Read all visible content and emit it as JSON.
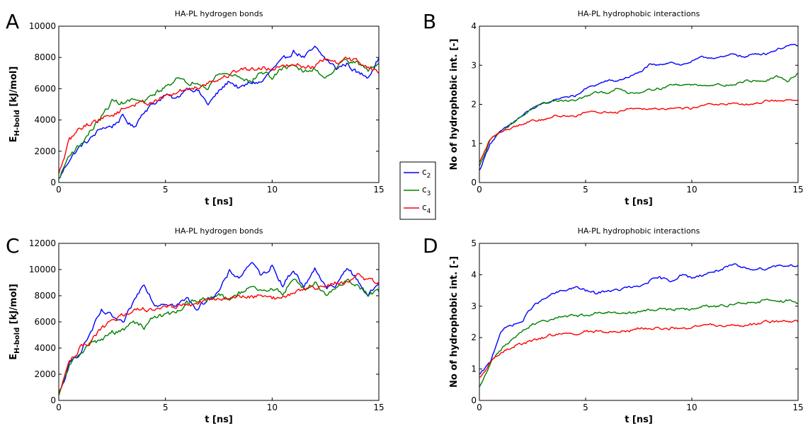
{
  "legend": {
    "entries": [
      {
        "base": "c",
        "sub": "2",
        "color": "#0000ff"
      },
      {
        "base": "c",
        "sub": "3",
        "color": "#008000"
      },
      {
        "base": "c",
        "sub": "4",
        "color": "#ff0000"
      }
    ]
  },
  "chart_data": [
    {
      "panel": "A",
      "type": "line",
      "title": "HA-PL hydrogen bonds",
      "xlabel": "t [ns]",
      "ylabel_main": "E",
      "ylabel_sub": "H-bold",
      "ylabel_rest": " [kJ/mol]",
      "xlim": [
        0,
        15
      ],
      "ylim": [
        0,
        10000
      ],
      "xticks": [
        0,
        5,
        10,
        15
      ],
      "yticks": [
        0,
        2000,
        4000,
        6000,
        8000,
        10000
      ],
      "noise": 0.025,
      "x": [
        0,
        0.5,
        1,
        1.5,
        2,
        2.5,
        3,
        3.5,
        4,
        4.5,
        5,
        5.5,
        6,
        6.5,
        7,
        7.5,
        8,
        8.5,
        9,
        9.5,
        10,
        10.5,
        11,
        11.5,
        12,
        12.5,
        13,
        13.5,
        14,
        14.5,
        15
      ],
      "series": [
        {
          "name": "c2",
          "color": "#0000ff",
          "values": [
            200,
            1500,
            2300,
            2800,
            3500,
            3600,
            4200,
            3500,
            4600,
            5100,
            5600,
            5300,
            6100,
            5900,
            5000,
            5800,
            6500,
            6000,
            6400,
            6400,
            7200,
            7800,
            8400,
            8000,
            8600,
            7900,
            7300,
            7600,
            7000,
            6800,
            8000
          ]
        },
        {
          "name": "c3",
          "color": "#008000",
          "values": [
            200,
            1800,
            2400,
            3300,
            4200,
            5200,
            5100,
            5300,
            5100,
            5700,
            6100,
            6700,
            6300,
            6500,
            6100,
            7000,
            6900,
            6800,
            6400,
            7100,
            6700,
            7300,
            7600,
            7000,
            7300,
            6700,
            7400,
            7900,
            7600,
            7200,
            7600
          ]
        },
        {
          "name": "c4",
          "color": "#ff0000",
          "values": [
            500,
            2700,
            3500,
            3800,
            4100,
            4300,
            4700,
            5000,
            5100,
            5200,
            5500,
            5700,
            6000,
            6100,
            6400,
            6600,
            6900,
            7300,
            7200,
            7400,
            7200,
            7600,
            7600,
            7400,
            7400,
            7900,
            7600,
            7900,
            7800,
            7400,
            7000
          ]
        }
      ]
    },
    {
      "panel": "B",
      "type": "line",
      "title": "HA-PL hydrophobic interactions",
      "xlabel": "t [ns]",
      "ylabel_main": "No of hydrophobic int. [-]",
      "ylabel_sub": "",
      "ylabel_rest": "",
      "xlim": [
        0,
        15
      ],
      "ylim": [
        0,
        4
      ],
      "xticks": [
        0,
        5,
        10,
        15
      ],
      "yticks": [
        0,
        1,
        2,
        3,
        4
      ],
      "noise": 0.012,
      "x": [
        0,
        0.5,
        1,
        1.5,
        2,
        2.5,
        3,
        3.5,
        4,
        4.5,
        5,
        5.5,
        6,
        6.5,
        7,
        7.5,
        8,
        8.5,
        9,
        9.5,
        10,
        10.5,
        11,
        11.5,
        12,
        12.5,
        13,
        13.5,
        14,
        14.5,
        15
      ],
      "series": [
        {
          "name": "c2",
          "color": "#0000ff",
          "values": [
            0.3,
            1.0,
            1.3,
            1.5,
            1.7,
            1.9,
            2.0,
            2.1,
            2.2,
            2.2,
            2.4,
            2.5,
            2.6,
            2.6,
            2.7,
            2.8,
            3.0,
            3.0,
            3.1,
            3.0,
            3.1,
            3.2,
            3.2,
            3.2,
            3.3,
            3.2,
            3.3,
            3.3,
            3.4,
            3.5,
            3.5
          ]
        },
        {
          "name": "c3",
          "color": "#008000",
          "values": [
            0.4,
            1.1,
            1.3,
            1.5,
            1.7,
            1.9,
            2.0,
            2.1,
            2.1,
            2.1,
            2.2,
            2.3,
            2.3,
            2.4,
            2.3,
            2.3,
            2.4,
            2.4,
            2.5,
            2.5,
            2.5,
            2.5,
            2.5,
            2.5,
            2.5,
            2.6,
            2.6,
            2.6,
            2.7,
            2.6,
            2.8
          ]
        },
        {
          "name": "c4",
          "color": "#ff0000",
          "values": [
            0.5,
            1.1,
            1.3,
            1.4,
            1.5,
            1.6,
            1.6,
            1.7,
            1.7,
            1.7,
            1.8,
            1.8,
            1.8,
            1.8,
            1.9,
            1.9,
            1.9,
            1.9,
            1.9,
            1.9,
            1.9,
            2.0,
            2.0,
            2.0,
            2.0,
            2.0,
            2.0,
            2.1,
            2.1,
            2.1,
            2.1
          ]
        }
      ]
    },
    {
      "panel": "C",
      "type": "line",
      "title": "HA-PL hydrogen bonds",
      "xlabel": "t [ns]",
      "ylabel_main": "E",
      "ylabel_sub": "H-bold",
      "ylabel_rest": " [kJ/mol]",
      "xlim": [
        0,
        15
      ],
      "ylim": [
        0,
        12000
      ],
      "xticks": [
        0,
        5,
        10,
        15
      ],
      "yticks": [
        0,
        2000,
        4000,
        6000,
        8000,
        10000,
        12000
      ],
      "noise": 0.025,
      "x": [
        0,
        0.5,
        1,
        1.5,
        2,
        2.5,
        3,
        3.5,
        4,
        4.5,
        5,
        5.5,
        6,
        6.5,
        7,
        7.5,
        8,
        8.5,
        9,
        9.5,
        10,
        10.5,
        11,
        11.5,
        12,
        12.5,
        13,
        13.5,
        14,
        14.5,
        15
      ],
      "series": [
        {
          "name": "c2",
          "color": "#0000ff",
          "values": [
            300,
            2700,
            3700,
            5200,
            6800,
            6400,
            5800,
            7500,
            9000,
            7300,
            7500,
            7200,
            7800,
            7000,
            7800,
            8300,
            9800,
            9400,
            10600,
            9500,
            10300,
            8800,
            10000,
            8600,
            10200,
            8600,
            8700,
            10200,
            9200,
            8000,
            9000
          ]
        },
        {
          "name": "c3",
          "color": "#008000",
          "values": [
            300,
            2700,
            3600,
            4400,
            4600,
            5200,
            5300,
            6000,
            5600,
            6500,
            6500,
            6700,
            7500,
            7500,
            7800,
            8000,
            7700,
            8200,
            8600,
            8300,
            8500,
            8200,
            9300,
            8500,
            9000,
            8200,
            8400,
            9200,
            8700,
            8200,
            8300
          ]
        },
        {
          "name": "c4",
          "color": "#ff0000",
          "values": [
            500,
            3000,
            4000,
            4500,
            5500,
            6000,
            6500,
            7000,
            7000,
            7000,
            7200,
            7200,
            7300,
            7400,
            7600,
            7800,
            7800,
            7900,
            7900,
            8000,
            7800,
            7900,
            8200,
            8500,
            8500,
            8800,
            9000,
            9000,
            9500,
            9200,
            9000
          ]
        }
      ]
    },
    {
      "panel": "D",
      "type": "line",
      "title": "HA-PL hydrophobic interactions",
      "xlabel": "t [ns]",
      "ylabel_main": "No of hydrophobic int. [-]",
      "ylabel_sub": "",
      "ylabel_rest": "",
      "xlim": [
        0,
        15
      ],
      "ylim": [
        0,
        5
      ],
      "xticks": [
        0,
        5,
        10,
        15
      ],
      "yticks": [
        0,
        1,
        2,
        3,
        4,
        5
      ],
      "noise": 0.015,
      "x": [
        0,
        0.5,
        1,
        1.5,
        2,
        2.5,
        3,
        3.5,
        4,
        4.5,
        5,
        5.5,
        6,
        6.5,
        7,
        7.5,
        8,
        8.5,
        9,
        9.5,
        10,
        10.5,
        11,
        11.5,
        12,
        12.5,
        13,
        13.5,
        14,
        14.5,
        15
      ],
      "series": [
        {
          "name": "c2",
          "color": "#0000ff",
          "values": [
            0.8,
            1.2,
            2.2,
            2.4,
            2.5,
            3.0,
            3.2,
            3.4,
            3.5,
            3.6,
            3.5,
            3.4,
            3.5,
            3.5,
            3.6,
            3.6,
            3.8,
            3.9,
            3.8,
            4.0,
            3.9,
            4.0,
            4.1,
            4.2,
            4.3,
            4.2,
            4.2,
            4.2,
            4.3,
            4.3,
            4.3
          ]
        },
        {
          "name": "c3",
          "color": "#008000",
          "values": [
            0.4,
            1.2,
            1.6,
            1.9,
            2.2,
            2.4,
            2.5,
            2.6,
            2.7,
            2.7,
            2.7,
            2.8,
            2.8,
            2.8,
            2.8,
            2.8,
            2.9,
            2.9,
            2.9,
            2.9,
            2.9,
            3.0,
            3.0,
            3.0,
            3.1,
            3.1,
            3.1,
            3.2,
            3.1,
            3.2,
            3.1
          ]
        },
        {
          "name": "c4",
          "color": "#ff0000",
          "values": [
            0.7,
            1.2,
            1.5,
            1.7,
            1.8,
            1.9,
            2.0,
            2.1,
            2.1,
            2.1,
            2.2,
            2.2,
            2.2,
            2.2,
            2.2,
            2.3,
            2.3,
            2.3,
            2.3,
            2.3,
            2.3,
            2.4,
            2.4,
            2.4,
            2.4,
            2.4,
            2.4,
            2.5,
            2.5,
            2.5,
            2.5
          ]
        }
      ]
    }
  ]
}
